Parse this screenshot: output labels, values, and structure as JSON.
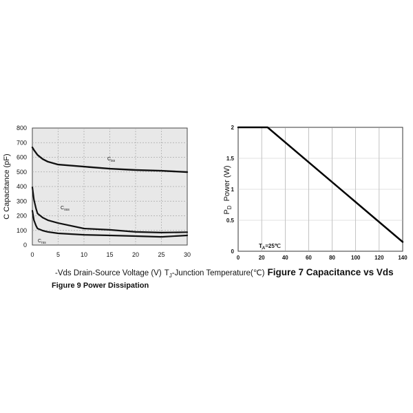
{
  "chart_data": [
    {
      "type": "line",
      "title": "Figure 7 Capacitance vs Vds",
      "xlabel": "-Vds Drain-Source Voltage (V)",
      "ylabel": "C Capacitance (pF)",
      "xlim": [
        0,
        30
      ],
      "ylim": [
        0,
        800
      ],
      "xticks": [
        0,
        5,
        10,
        15,
        20,
        25,
        30
      ],
      "yticks": [
        0,
        100,
        200,
        300,
        400,
        500,
        600,
        700,
        800
      ],
      "grid": true,
      "x": [
        0,
        0.3,
        0.7,
        1,
        2,
        3,
        5,
        10,
        15,
        20,
        25,
        30
      ],
      "series": [
        {
          "name": {
            "main": "C",
            "sub": "iss"
          },
          "values": [
            668,
            650,
            630,
            616,
            588,
            570,
            550,
            536,
            522,
            513,
            508,
            499
          ]
        },
        {
          "name": {
            "main": "C",
            "sub": "oss"
          },
          "values": [
            395,
            310,
            250,
            216,
            188,
            170,
            150,
            113,
            104,
            90,
            85,
            88
          ]
        },
        {
          "name": {
            "main": "C",
            "sub": "rss"
          },
          "values": [
            235,
            170,
            132,
            113,
            99,
            90,
            80,
            70,
            66,
            61,
            56,
            66
          ]
        }
      ]
    },
    {
      "type": "line",
      "title": "Figure 9 Power Dissipation",
      "xlabel": {
        "main": "T",
        "sub": "J",
        "rest": "-Junction Temperature(℃)"
      },
      "ylabel": {
        "main": "P",
        "sub": "D",
        "rest": "Power (W)"
      },
      "xlim": [
        0,
        140
      ],
      "ylim": [
        0,
        2
      ],
      "xticks": [
        0,
        20,
        40,
        60,
        80,
        100,
        120,
        140
      ],
      "yticks": [
        0,
        0.5,
        1,
        1.5,
        2
      ],
      "grid": true,
      "annotation": {
        "main": "T",
        "sub": "A",
        "rest": "=25℃"
      },
      "series": [
        {
          "x": [
            0,
            25,
            140
          ],
          "values": [
            2,
            2,
            0.15
          ]
        }
      ]
    }
  ]
}
